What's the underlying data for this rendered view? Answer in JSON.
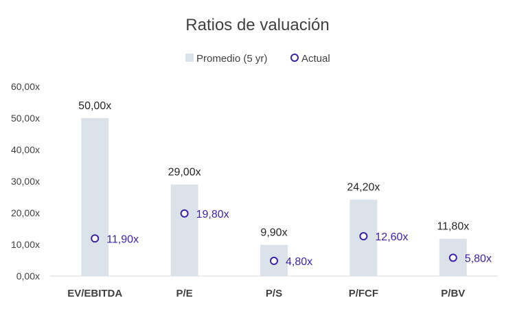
{
  "chart_data": {
    "type": "bar",
    "title": "Ratios de valuación",
    "categories": [
      "EV/EBITDA",
      "P/E",
      "P/S",
      "P/FCF",
      "P/BV"
    ],
    "ylim": [
      0,
      60
    ],
    "yticks": [
      "0,00x",
      "10,00x",
      "20,00x",
      "30,00x",
      "40,00x",
      "50,00x",
      "60,00x"
    ],
    "ytick_values": [
      0,
      10,
      20,
      30,
      40,
      50,
      60
    ],
    "grid": false,
    "legend_position": "top-center",
    "series": [
      {
        "name": "Promedio (5 yr)",
        "kind": "bar",
        "color": "#dce2ea",
        "values": [
          50.0,
          29.0,
          9.9,
          24.2,
          11.8
        ],
        "labels": [
          "50,00x",
          "29,00x",
          "9,90x",
          "24,20x",
          "11,80x"
        ]
      },
      {
        "name": "Actual",
        "kind": "marker",
        "color": "#3a1fa8",
        "values": [
          11.9,
          19.8,
          4.8,
          12.6,
          5.8
        ],
        "labels": [
          "11,90x",
          "19,80x",
          "4,80x",
          "12,60x",
          "5,80x"
        ]
      }
    ]
  }
}
